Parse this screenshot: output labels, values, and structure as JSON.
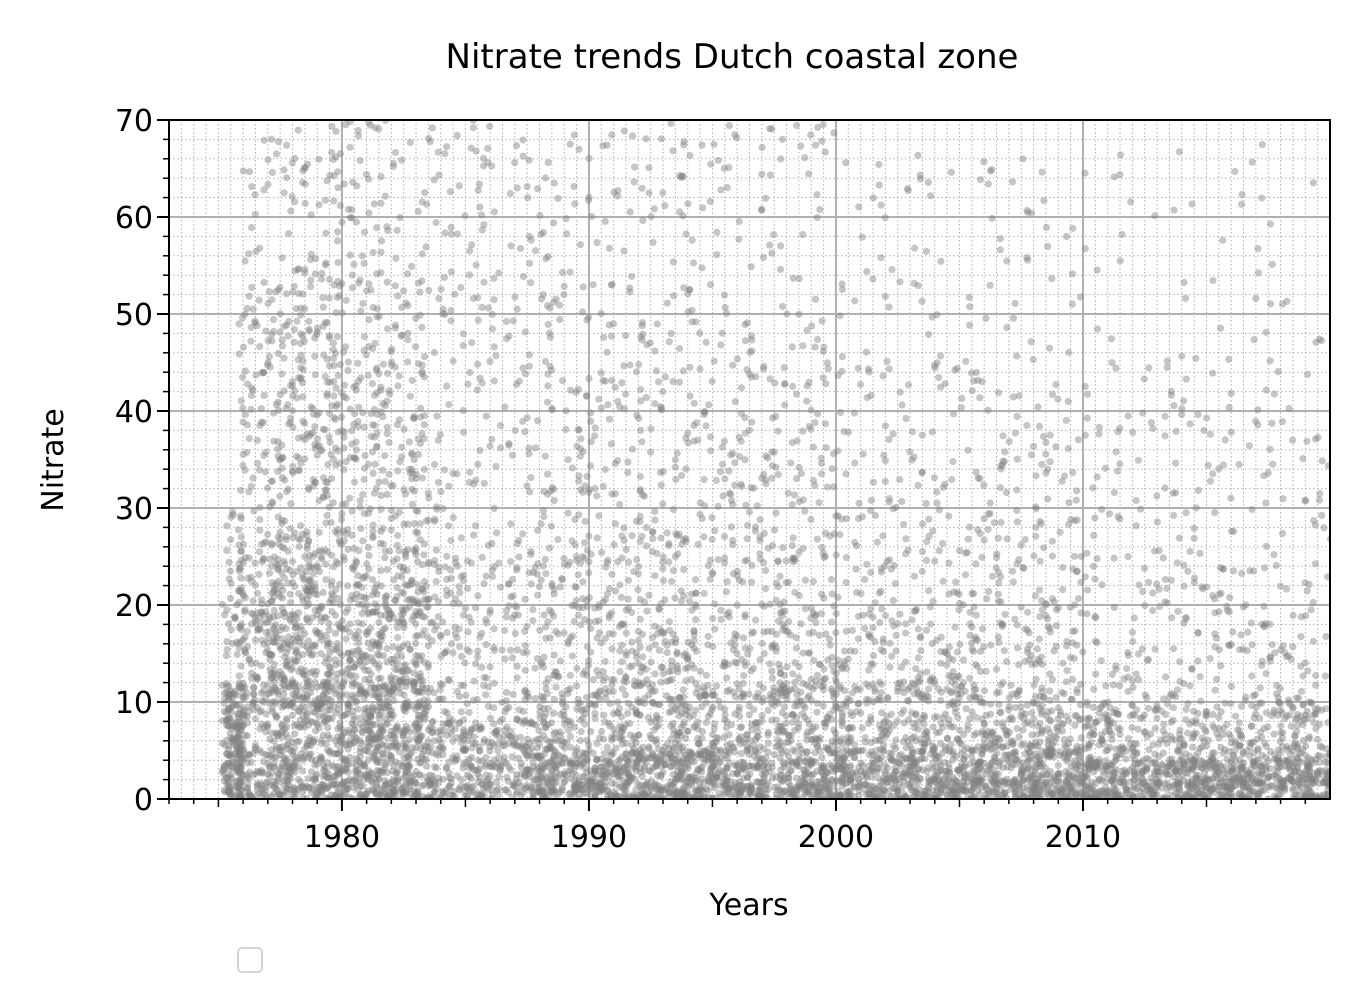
{
  "chart_data": {
    "type": "scatter",
    "title": "Nitrate trends Dutch coastal zone",
    "xlabel": "Years",
    "ylabel": "Nitrate",
    "xlim": [
      1973.0,
      2020.0
    ],
    "ylim": [
      0,
      70
    ],
    "xticks": [
      1980,
      1990,
      2000,
      2010
    ],
    "xtick_labels": [
      "1980",
      "1990",
      "2000",
      "2010"
    ],
    "yticks": [
      0,
      10,
      20,
      30,
      40,
      50,
      60,
      70
    ],
    "ytick_labels": [
      "0",
      "10",
      "20",
      "30",
      "40",
      "50",
      "60",
      "70"
    ],
    "grid": "major solid, minor dotted",
    "legend": "lower-left below axes, empty",
    "marker_color": "#808080",
    "marker_alpha": 0.45,
    "series": [
      {
        "values_description_density": [
          {
            "x_range": [
              1975.2,
              1976.0
            ],
            "y_range": [
              0,
              12
            ],
            "n": 180
          },
          {
            "x_range": [
              1975.2,
              1976.0
            ],
            "y_range": [
              12,
              30
            ],
            "n": 40
          },
          {
            "x_range": [
              1975.8,
              1977.0
            ],
            "y_range": [
              0,
              20
            ],
            "n": 160
          },
          {
            "x_range": [
              1975.8,
              1977.0
            ],
            "y_range": [
              20,
              52
            ],
            "n": 90
          },
          {
            "x_range": [
              1976.0,
              1977.0
            ],
            "y_range": [
              52,
              68
            ],
            "n": 15
          },
          {
            "x_range": [
              1977.0,
              1983.4
            ],
            "y_range": [
              0,
              12
            ],
            "n": 900
          },
          {
            "x_range": [
              1977.0,
              1983.4
            ],
            "y_range": [
              12,
              22
            ],
            "n": 450
          },
          {
            "x_range": [
              1977.0,
              1983.4
            ],
            "y_range": [
              22,
              40
            ],
            "n": 380
          },
          {
            "x_range": [
              1977.0,
              1983.4
            ],
            "y_range": [
              40,
              56
            ],
            "n": 230
          },
          {
            "x_range": [
              1977.0,
              1983.4
            ],
            "y_range": [
              56,
              70
            ],
            "n": 90
          },
          {
            "x_range": [
              1983.4,
              1988.0
            ],
            "y_range": [
              0,
              8
            ],
            "n": 330
          },
          {
            "x_range": [
              1983.4,
              1988.0
            ],
            "y_range": [
              8,
              25
            ],
            "n": 200
          },
          {
            "x_range": [
              1983.4,
              1988.0
            ],
            "y_range": [
              25,
              70
            ],
            "n": 180
          },
          {
            "x_range": [
              1988.0,
              2000.0
            ],
            "y_range": [
              0,
              5
            ],
            "n": 900
          },
          {
            "x_range": [
              1988.0,
              2000.0
            ],
            "y_range": [
              5,
              12
            ],
            "n": 500
          },
          {
            "x_range": [
              1988.0,
              2000.0
            ],
            "y_range": [
              12,
              25
            ],
            "n": 420
          },
          {
            "x_range": [
              1988.0,
              2000.0
            ],
            "y_range": [
              25,
              45
            ],
            "n": 330
          },
          {
            "x_range": [
              1988.0,
              2000.0
            ],
            "y_range": [
              45,
              70
            ],
            "n": 200
          },
          {
            "x_range": [
              2000.0,
              2010.0
            ],
            "y_range": [
              0,
              5
            ],
            "n": 750
          },
          {
            "x_range": [
              2000.0,
              2010.0
            ],
            "y_range": [
              5,
              12
            ],
            "n": 400
          },
          {
            "x_range": [
              2000.0,
              2010.0
            ],
            "y_range": [
              12,
              25
            ],
            "n": 260
          },
          {
            "x_range": [
              2000.0,
              2010.0
            ],
            "y_range": [
              25,
              45
            ],
            "n": 190
          },
          {
            "x_range": [
              2000.0,
              2010.0
            ],
            "y_range": [
              45,
              67
            ],
            "n": 80
          },
          {
            "x_range": [
              2010.0,
              2020.0
            ],
            "y_range": [
              0,
              4
            ],
            "n": 700
          },
          {
            "x_range": [
              2010.0,
              2020.0
            ],
            "y_range": [
              4,
              10
            ],
            "n": 350
          },
          {
            "x_range": [
              2010.0,
              2020.0
            ],
            "y_range": [
              10,
              25
            ],
            "n": 190
          },
          {
            "x_range": [
              2010.0,
              2020.0
            ],
            "y_range": [
              25,
              45
            ],
            "n": 120
          },
          {
            "x_range": [
              2010.0,
              2020.0
            ],
            "y_range": [
              45,
              68
            ],
            "n": 45
          }
        ]
      }
    ]
  }
}
